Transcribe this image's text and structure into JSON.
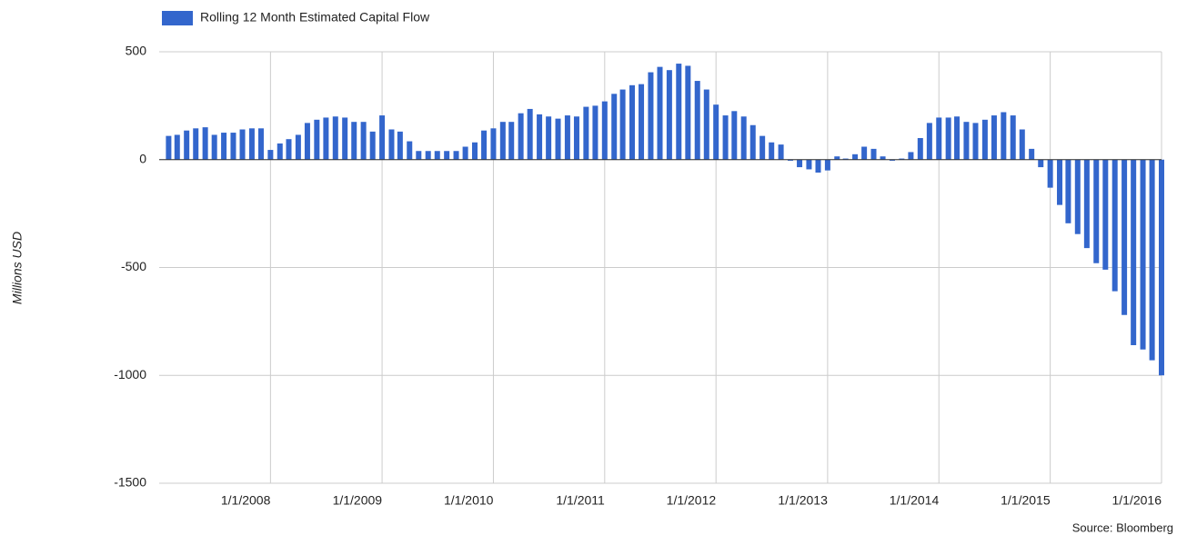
{
  "chart_data": {
    "type": "bar",
    "legend": "Rolling 12 Month Estimated Capital Flow",
    "ylabel": "Millions USD",
    "source": "Source: Bloomberg",
    "color": "#3366cc",
    "legend_position": "top-left",
    "grid": true,
    "x": [
      "2/1/2007",
      "3/1/2007",
      "4/1/2007",
      "5/1/2007",
      "6/1/2007",
      "7/1/2007",
      "8/1/2007",
      "9/1/2007",
      "10/1/2007",
      "11/1/2007",
      "12/1/2007",
      "1/1/2008",
      "2/1/2008",
      "3/1/2008",
      "4/1/2008",
      "5/1/2008",
      "6/1/2008",
      "7/1/2008",
      "8/1/2008",
      "9/1/2008",
      "10/1/2008",
      "11/1/2008",
      "12/1/2008",
      "1/1/2009",
      "2/1/2009",
      "3/1/2009",
      "4/1/2009",
      "5/1/2009",
      "6/1/2009",
      "7/1/2009",
      "8/1/2009",
      "9/1/2009",
      "10/1/2009",
      "11/1/2009",
      "12/1/2009",
      "1/1/2010",
      "2/1/2010",
      "3/1/2010",
      "4/1/2010",
      "5/1/2010",
      "6/1/2010",
      "7/1/2010",
      "8/1/2010",
      "9/1/2010",
      "10/1/2010",
      "11/1/2010",
      "12/1/2010",
      "1/1/2011",
      "2/1/2011",
      "3/1/2011",
      "4/1/2011",
      "5/1/2011",
      "6/1/2011",
      "7/1/2011",
      "8/1/2011",
      "9/1/2011",
      "10/1/2011",
      "11/1/2011",
      "12/1/2011",
      "1/1/2012",
      "2/1/2012",
      "3/1/2012",
      "4/1/2012",
      "5/1/2012",
      "6/1/2012",
      "7/1/2012",
      "8/1/2012",
      "9/1/2012",
      "10/1/2012",
      "11/1/2012",
      "12/1/2012",
      "1/1/2013",
      "2/1/2013",
      "3/1/2013",
      "4/1/2013",
      "5/1/2013",
      "6/1/2013",
      "7/1/2013",
      "8/1/2013",
      "9/1/2013",
      "10/1/2013",
      "11/1/2013",
      "12/1/2013",
      "1/1/2014",
      "2/1/2014",
      "3/1/2014",
      "4/1/2014",
      "5/1/2014",
      "6/1/2014",
      "7/1/2014",
      "8/1/2014",
      "9/1/2014",
      "10/1/2014",
      "11/1/2014",
      "12/1/2014",
      "1/1/2015",
      "2/1/2015",
      "3/1/2015",
      "4/1/2015",
      "5/1/2015",
      "6/1/2015",
      "7/1/2015",
      "8/1/2015",
      "9/1/2015",
      "10/1/2015",
      "11/1/2015",
      "12/1/2015",
      "1/1/2016"
    ],
    "values": [
      110,
      115,
      135,
      145,
      150,
      115,
      125,
      125,
      140,
      145,
      145,
      45,
      75,
      95,
      115,
      170,
      185,
      195,
      200,
      195,
      175,
      175,
      130,
      205,
      140,
      130,
      85,
      40,
      40,
      40,
      40,
      40,
      60,
      80,
      135,
      145,
      175,
      175,
      215,
      235,
      210,
      200,
      190,
      205,
      200,
      245,
      250,
      270,
      305,
      325,
      345,
      350,
      405,
      430,
      415,
      445,
      435,
      365,
      325,
      255,
      205,
      225,
      200,
      160,
      110,
      80,
      70,
      -5,
      -35,
      -45,
      -60,
      -50,
      15,
      5,
      25,
      60,
      50,
      15,
      -5,
      5,
      35,
      100,
      170,
      195,
      195,
      200,
      175,
      170,
      185,
      205,
      220,
      205,
      140,
      50,
      -35,
      -130,
      -210,
      -295,
      -345,
      -410,
      -480,
      -510,
      -610,
      -720,
      -860,
      -880,
      -930,
      -1000
    ],
    "xlim": [
      "1/1/2007",
      "1/1/2016"
    ],
    "xticks": [
      "1/1/2008",
      "1/1/2009",
      "1/1/2010",
      "1/1/2011",
      "1/1/2012",
      "1/1/2013",
      "1/1/2014",
      "1/1/2015",
      "1/1/2016"
    ],
    "ylim": [
      -1500,
      500
    ],
    "yticks": [
      -1500,
      -1000,
      -500,
      0,
      500
    ]
  }
}
